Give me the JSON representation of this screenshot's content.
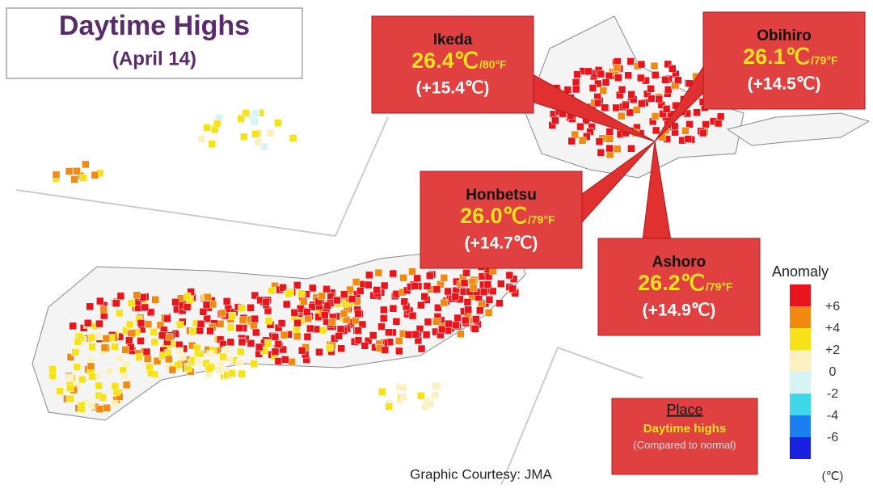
{
  "header": {
    "title": "Daytime Highs",
    "subtitle": "(April 14)"
  },
  "callouts": [
    {
      "place": "Ikeda",
      "temp_c": "26.4℃",
      "temp_f": "/80°F",
      "anomaly": "(+15.4℃)"
    },
    {
      "place": "Obihiro",
      "temp_c": "26.1℃",
      "temp_f": "/79°F",
      "anomaly": "(+14.5℃)"
    },
    {
      "place": "Honbetsu",
      "temp_c": "26.0℃",
      "temp_f": "/79°F",
      "anomaly": "(+14.7℃)"
    },
    {
      "place": "Ashoro",
      "temp_c": "26.2℃",
      "temp_f": "/79°F",
      "anomaly": "(+14.9℃)"
    }
  ],
  "legend": {
    "title": "Anomaly",
    "colors": [
      "#e8161c",
      "#f08a12",
      "#f7e21a",
      "#faf0c0",
      "#d6f4f4",
      "#3fd8e8",
      "#1a80f0",
      "#1a20e0"
    ],
    "labels": [
      "+6",
      "+4",
      "+2",
      "0",
      "-2",
      "-4",
      "-6"
    ],
    "unit": "(℃)"
  },
  "key": {
    "place": "Place",
    "highs": "Daytime highs",
    "note": "(Compared to normal)"
  },
  "credit": "Graphic Courtesy: JMA"
}
